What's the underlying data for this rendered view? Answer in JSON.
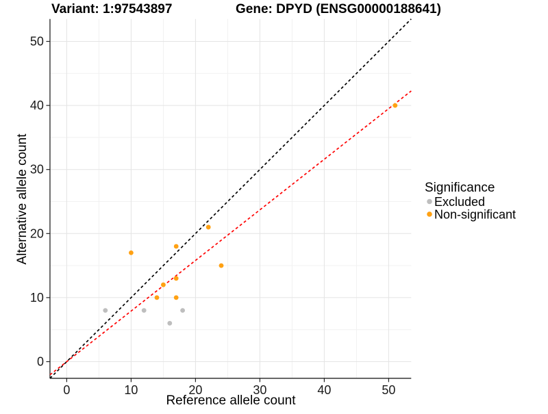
{
  "chart_data": {
    "type": "scatter",
    "variant_title": "Variant: 1:97543897",
    "gene_title": "Gene: DPYD (ENSG00000188641)",
    "xlabel": "Reference allele count",
    "ylabel": "Alternative allele count",
    "xlim": [
      -2.6,
      53.5
    ],
    "ylim": [
      -2.6,
      53.5
    ],
    "xticks": [
      0,
      10,
      20,
      30,
      40,
      50
    ],
    "yticks": [
      0,
      10,
      20,
      30,
      40,
      50
    ],
    "minor_xticks": [
      5,
      15,
      25,
      35,
      45
    ],
    "minor_yticks": [
      5,
      15,
      25,
      35,
      45
    ],
    "grid": "major and minor, light gray on white",
    "series": [
      {
        "name": "Excluded",
        "color": "#BEBEBE",
        "points": [
          [
            6,
            8
          ],
          [
            12,
            8
          ],
          [
            16,
            6
          ],
          [
            18,
            8
          ]
        ]
      },
      {
        "name": "Non-significant",
        "color": "#FFA113",
        "points": [
          [
            10,
            17
          ],
          [
            14,
            10
          ],
          [
            15,
            12
          ],
          [
            17,
            10
          ],
          [
            17,
            13
          ],
          [
            17,
            18
          ],
          [
            22,
            21
          ],
          [
            24,
            15
          ],
          [
            51,
            40
          ]
        ]
      }
    ],
    "lines": [
      {
        "name": "identity-line",
        "slope": 1.0,
        "intercept": 0,
        "color": "#000000",
        "style": "dashed"
      },
      {
        "name": "expected-ratio-line",
        "slope": 0.79,
        "intercept": 0,
        "color": "#FF0000",
        "style": "dashed"
      }
    ],
    "legend": {
      "title": "Significance",
      "position": "right",
      "items": [
        {
          "label": "Excluded",
          "color": "#BEBEBE"
        },
        {
          "label": "Non-significant",
          "color": "#FFA113"
        }
      ]
    },
    "colors": {
      "axis_line": "#222222",
      "major_grid": "#E4E4E4",
      "minor_grid": "#F1F1F1",
      "tick": "#222222"
    }
  }
}
